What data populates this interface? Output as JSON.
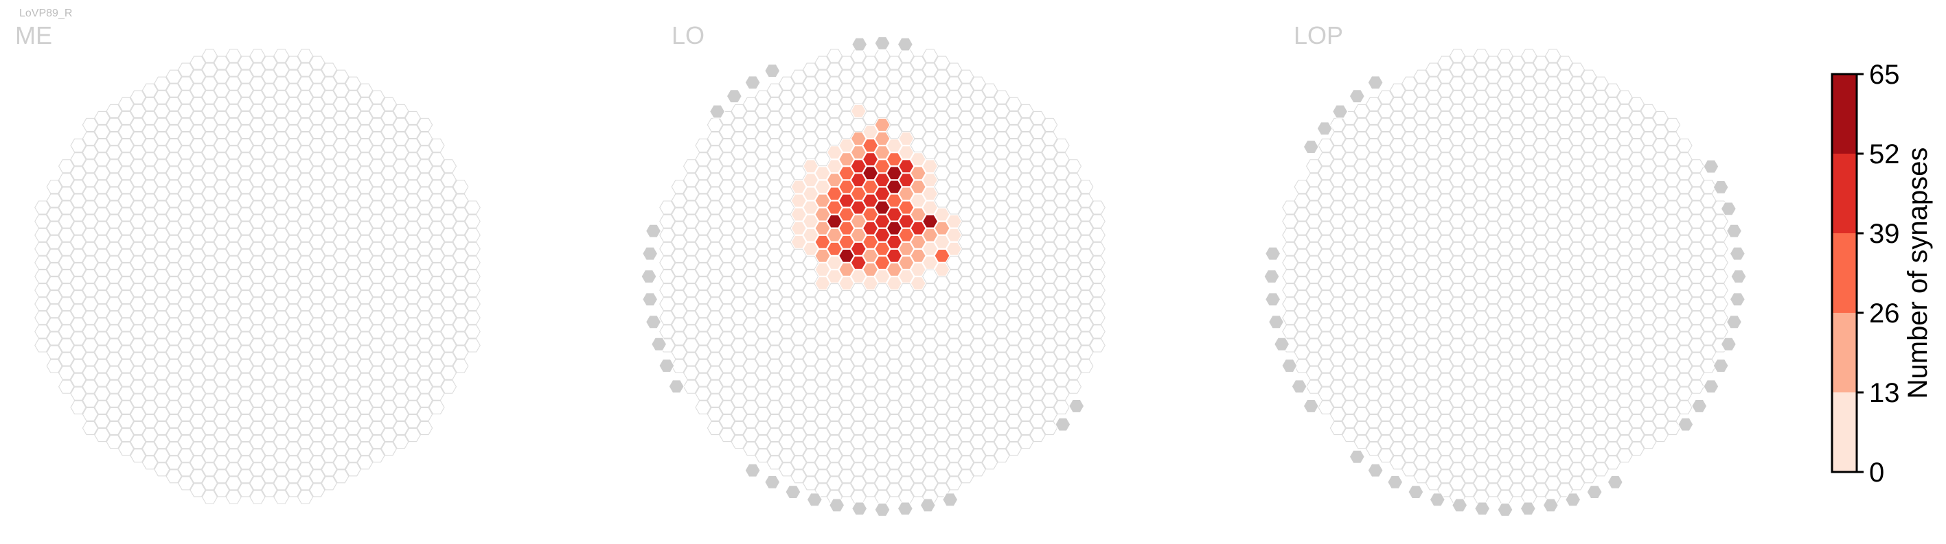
{
  "chart_data": {
    "type": "heatmap",
    "cell_title": "LoVP89_R",
    "panels": [
      {
        "name": "ME",
        "highlighted_cells": []
      },
      {
        "name": "LO",
        "highlighted_cells": [
          {
            "col": -2,
            "row": -12,
            "value": 3
          },
          {
            "col": -1,
            "row": -11,
            "value": 10
          },
          {
            "col": 0,
            "row": -11,
            "value": 20
          },
          {
            "col": -3,
            "row": -10,
            "value": 5
          },
          {
            "col": -2,
            "row": -10,
            "value": 18
          },
          {
            "col": -1,
            "row": -10,
            "value": 30
          },
          {
            "col": 0,
            "row": -10,
            "value": 14
          },
          {
            "col": 1,
            "row": -10,
            "value": 8
          },
          {
            "col": 2,
            "row": -10,
            "value": 6
          },
          {
            "col": -4,
            "row": -9,
            "value": 4
          },
          {
            "col": -3,
            "row": -9,
            "value": 15
          },
          {
            "col": -2,
            "row": -9,
            "value": 25
          },
          {
            "col": -1,
            "row": -9,
            "value": 40
          },
          {
            "col": 0,
            "row": -9,
            "value": 22
          },
          {
            "col": 1,
            "row": -9,
            "value": 34
          },
          {
            "col": 2,
            "row": -9,
            "value": 12
          },
          {
            "col": 3,
            "row": -9,
            "value": 6
          },
          {
            "col": -6,
            "row": -8,
            "value": 3
          },
          {
            "col": -5,
            "row": -8,
            "value": 6
          },
          {
            "col": -4,
            "row": -8,
            "value": 10
          },
          {
            "col": -3,
            "row": -8,
            "value": 35
          },
          {
            "col": -2,
            "row": -8,
            "value": 48
          },
          {
            "col": -1,
            "row": -8,
            "value": 60
          },
          {
            "col": 0,
            "row": -8,
            "value": 30
          },
          {
            "col": 1,
            "row": -8,
            "value": 55
          },
          {
            "col": 2,
            "row": -8,
            "value": 40
          },
          {
            "col": 3,
            "row": -8,
            "value": 20
          },
          {
            "col": 4,
            "row": -8,
            "value": 8
          },
          {
            "col": -7,
            "row": -7,
            "value": 2
          },
          {
            "col": -6,
            "row": -7,
            "value": 5
          },
          {
            "col": -5,
            "row": -7,
            "value": 8
          },
          {
            "col": -4,
            "row": -7,
            "value": 22
          },
          {
            "col": -3,
            "row": -7,
            "value": 38
          },
          {
            "col": -2,
            "row": -7,
            "value": 44
          },
          {
            "col": -1,
            "row": -7,
            "value": 30
          },
          {
            "col": 0,
            "row": -7,
            "value": 45
          },
          {
            "col": 1,
            "row": -7,
            "value": 62
          },
          {
            "col": 2,
            "row": -7,
            "value": 42
          },
          {
            "col": 3,
            "row": -7,
            "value": 18
          },
          {
            "col": 4,
            "row": -7,
            "value": 9
          },
          {
            "col": -7,
            "row": -6,
            "value": 3
          },
          {
            "col": -6,
            "row": -6,
            "value": 6
          },
          {
            "col": -5,
            "row": -6,
            "value": 14
          },
          {
            "col": -4,
            "row": -6,
            "value": 30
          },
          {
            "col": -3,
            "row": -6,
            "value": 42
          },
          {
            "col": -2,
            "row": -6,
            "value": 36
          },
          {
            "col": -1,
            "row": -6,
            "value": 48
          },
          {
            "col": 0,
            "row": -6,
            "value": 40
          },
          {
            "col": 1,
            "row": -6,
            "value": 35
          },
          {
            "col": 2,
            "row": -6,
            "value": 22
          },
          {
            "col": 3,
            "row": -6,
            "value": 12
          },
          {
            "col": 4,
            "row": -6,
            "value": 6
          },
          {
            "col": -7,
            "row": -5,
            "value": 2
          },
          {
            "col": -6,
            "row": -5,
            "value": 8
          },
          {
            "col": -5,
            "row": -5,
            "value": 18
          },
          {
            "col": -4,
            "row": -5,
            "value": 34
          },
          {
            "col": -3,
            "row": -5,
            "value": 28
          },
          {
            "col": -2,
            "row": -5,
            "value": 45
          },
          {
            "col": -1,
            "row": -5,
            "value": 38
          },
          {
            "col": 0,
            "row": -5,
            "value": 55
          },
          {
            "col": 1,
            "row": -5,
            "value": 44
          },
          {
            "col": 2,
            "row": -5,
            "value": 30
          },
          {
            "col": 3,
            "row": -5,
            "value": 20
          },
          {
            "col": 4,
            "row": -5,
            "value": 12
          },
          {
            "col": 5,
            "row": -5,
            "value": 5
          },
          {
            "col": -7,
            "row": -4,
            "value": 4
          },
          {
            "col": -6,
            "row": -4,
            "value": 12
          },
          {
            "col": -5,
            "row": -4,
            "value": 24
          },
          {
            "col": -4,
            "row": -4,
            "value": 62
          },
          {
            "col": -3,
            "row": -4,
            "value": 30
          },
          {
            "col": -2,
            "row": -4,
            "value": 26
          },
          {
            "col": -1,
            "row": -4,
            "value": 50
          },
          {
            "col": 0,
            "row": -4,
            "value": 42
          },
          {
            "col": 1,
            "row": -4,
            "value": 56
          },
          {
            "col": 2,
            "row": -4,
            "value": 46
          },
          {
            "col": 3,
            "row": -4,
            "value": 50
          },
          {
            "col": 4,
            "row": -4,
            "value": 58
          },
          {
            "col": 5,
            "row": -4,
            "value": 20
          },
          {
            "col": 6,
            "row": -4,
            "value": 6
          },
          {
            "col": -7,
            "row": -3,
            "value": 3
          },
          {
            "col": -6,
            "row": -3,
            "value": 10
          },
          {
            "col": -5,
            "row": -3,
            "value": 28
          },
          {
            "col": -4,
            "row": -3,
            "value": 22
          },
          {
            "col": -3,
            "row": -3,
            "value": 38
          },
          {
            "col": -2,
            "row": -3,
            "value": 18
          },
          {
            "col": -1,
            "row": -3,
            "value": 34
          },
          {
            "col": 0,
            "row": -3,
            "value": 52
          },
          {
            "col": 1,
            "row": -3,
            "value": 45
          },
          {
            "col": 2,
            "row": -3,
            "value": 38
          },
          {
            "col": 3,
            "row": -3,
            "value": 24
          },
          {
            "col": 4,
            "row": -3,
            "value": 14
          },
          {
            "col": 5,
            "row": -3,
            "value": 8
          },
          {
            "col": 6,
            "row": -3,
            "value": 4
          },
          {
            "col": -6,
            "row": -2,
            "value": 6
          },
          {
            "col": -5,
            "row": -2,
            "value": 14
          },
          {
            "col": -4,
            "row": -2,
            "value": 30
          },
          {
            "col": -3,
            "row": -2,
            "value": 54
          },
          {
            "col": -2,
            "row": -2,
            "value": 40
          },
          {
            "col": -1,
            "row": -2,
            "value": 20
          },
          {
            "col": 0,
            "row": -2,
            "value": 36
          },
          {
            "col": 1,
            "row": -2,
            "value": 48
          },
          {
            "col": 2,
            "row": -2,
            "value": 26
          },
          {
            "col": 3,
            "row": -2,
            "value": 16
          },
          {
            "col": 4,
            "row": -2,
            "value": 10
          },
          {
            "col": 5,
            "row": -2,
            "value": 36
          },
          {
            "col": 6,
            "row": -2,
            "value": 5
          },
          {
            "col": -5,
            "row": -1,
            "value": 6
          },
          {
            "col": -4,
            "row": -1,
            "value": 10
          },
          {
            "col": -3,
            "row": -1,
            "value": 18
          },
          {
            "col": -2,
            "row": -1,
            "value": 40
          },
          {
            "col": -1,
            "row": -1,
            "value": 16
          },
          {
            "col": 0,
            "row": -1,
            "value": 28
          },
          {
            "col": 1,
            "row": -1,
            "value": 24
          },
          {
            "col": 2,
            "row": -1,
            "value": 14
          },
          {
            "col": 3,
            "row": -1,
            "value": 8
          },
          {
            "col": 4,
            "row": -1,
            "value": 6
          },
          {
            "col": 5,
            "row": -1,
            "value": 4
          },
          {
            "col": -5,
            "row": 0,
            "value": 3
          },
          {
            "col": -4,
            "row": 0,
            "value": 5
          },
          {
            "col": -3,
            "row": 0,
            "value": 8
          },
          {
            "col": -2,
            "row": 0,
            "value": 10
          },
          {
            "col": -1,
            "row": 0,
            "value": 6
          },
          {
            "col": 0,
            "row": 0,
            "value": 8
          },
          {
            "col": 1,
            "row": 0,
            "value": 5
          },
          {
            "col": 2,
            "row": 0,
            "value": 4
          },
          {
            "col": 3,
            "row": 0,
            "value": 3
          }
        ]
      },
      {
        "name": "LOP",
        "highlighted_cells": []
      }
    ],
    "colorbar": {
      "label": "Number of synapses",
      "ticks": [
        "0",
        "13",
        "26",
        "39",
        "52",
        "65"
      ],
      "boundaries": [
        0,
        13,
        26,
        39,
        52,
        65
      ],
      "colors": [
        "#fee5d9",
        "#fcae91",
        "#fb6a4a",
        "#de2d26",
        "#a50f15"
      ]
    },
    "colors": {
      "empty_fill": "#ffffff",
      "empty_stroke": "#dcdcdc",
      "outside_fill": "#cccccc"
    }
  }
}
